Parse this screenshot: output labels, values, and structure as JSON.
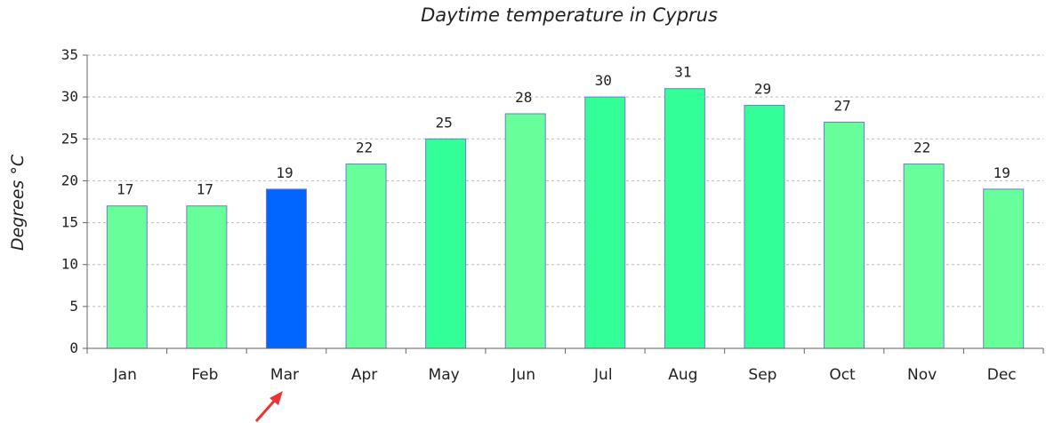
{
  "chart_data": {
    "type": "bar",
    "title": "Daytime temperature in Cyprus",
    "xlabel": "",
    "ylabel": "Degrees °C",
    "ylim": [
      0,
      35
    ],
    "yticks": [
      0,
      5,
      10,
      15,
      20,
      25,
      30,
      35
    ],
    "grid": true,
    "categories": [
      "Jan",
      "Feb",
      "Mar",
      "Apr",
      "May",
      "Jun",
      "Jul",
      "Aug",
      "Sep",
      "Oct",
      "Nov",
      "Dec"
    ],
    "values": [
      17,
      17,
      19,
      22,
      25,
      28,
      30,
      31,
      29,
      27,
      22,
      19
    ],
    "highlighted_category": "Mar",
    "colors": {
      "bar_default": "#66ff99",
      "bar_summer": "#33ff99",
      "bar_highlight": "#0066ff",
      "bar_border": "#7777cc",
      "grid": "#bbbbbb",
      "axis": "#666666",
      "pointer_arrow": "#ee3333"
    },
    "bar_color_keys": [
      "bar_default",
      "bar_default",
      "bar_highlight",
      "bar_default",
      "bar_summer",
      "bar_default",
      "bar_summer",
      "bar_summer",
      "bar_summer",
      "bar_default",
      "bar_default",
      "bar_default"
    ]
  }
}
